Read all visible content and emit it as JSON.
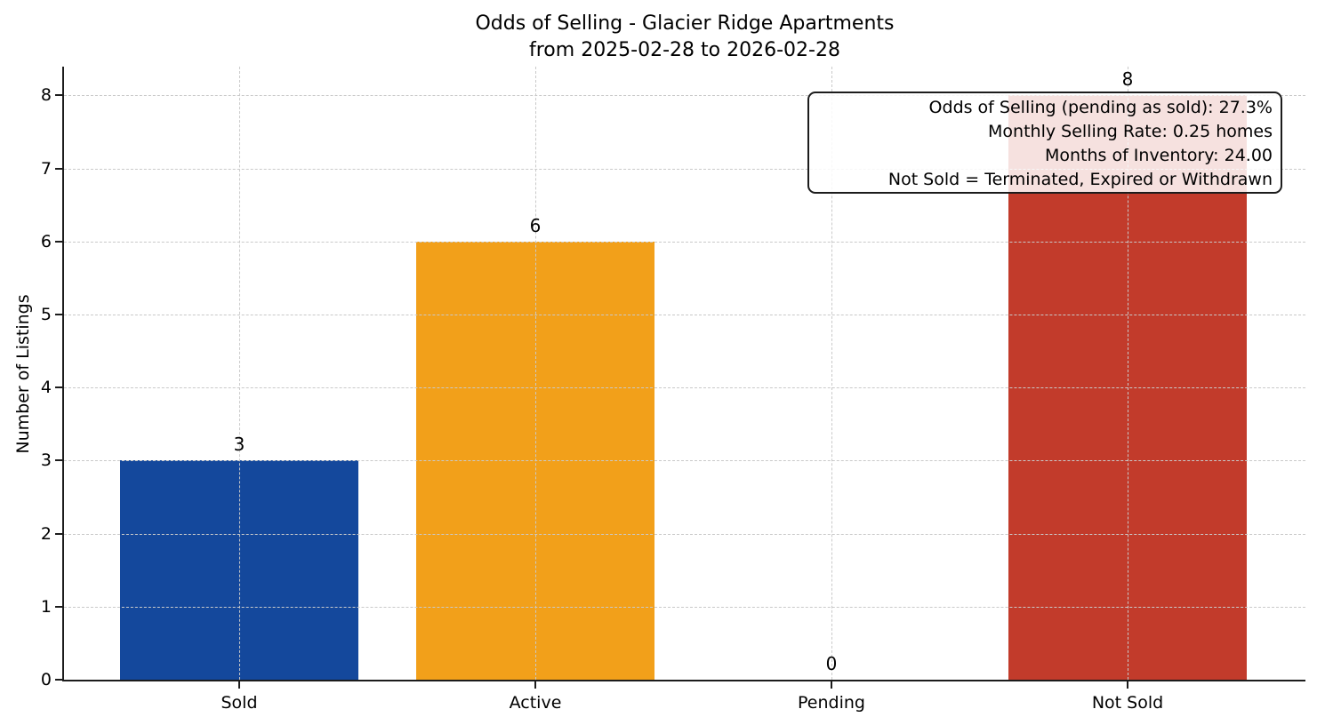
{
  "chart_data": {
    "type": "bar",
    "title": "Odds of Selling - Glacier Ridge Apartments",
    "subtitle": "from 2025-02-28 to 2026-02-28",
    "xlabel": "",
    "ylabel": "Number of Listings",
    "categories": [
      "Sold",
      "Active",
      "Pending",
      "Not Sold"
    ],
    "values": [
      3,
      6,
      0,
      8
    ],
    "value_labels": [
      "3",
      "6",
      "0",
      "8"
    ],
    "bar_colors": [
      "#14489C",
      "#F2A01A",
      null,
      "#C23B2B"
    ],
    "ylim": [
      0,
      8.4
    ],
    "yticks": [
      0,
      1,
      2,
      3,
      4,
      5,
      6,
      7,
      8
    ],
    "grid": true,
    "grid_style": "dashed",
    "grid_color": "#c9c9c9",
    "spine_color": "#1c1c1c",
    "legend_position": "none",
    "annotation": {
      "lines": [
        "Odds of Selling (pending as sold): 27.3%",
        "Monthly Selling Rate: 0.25 homes",
        "Months of Inventory: 24.00",
        "Not Sold = Terminated, Expired or Withdrawn"
      ]
    }
  }
}
